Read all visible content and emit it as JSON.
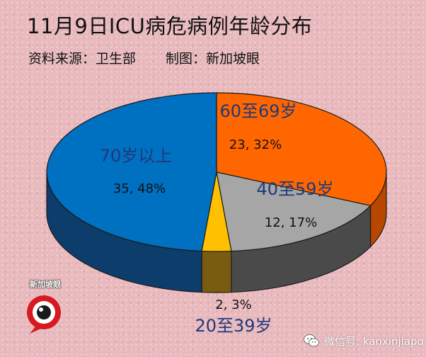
{
  "header": {
    "title": "11月9日ICU病危病例年龄分布",
    "source": "资料来源：卫生部",
    "credit": "制图：新加坡眼"
  },
  "chart_data": {
    "type": "pie",
    "title": "11月9日ICU病危病例年龄分布",
    "slices": [
      {
        "label": "60至69岁",
        "count": 23,
        "percent": "32%",
        "value_text": "23, 32%",
        "color": "#ff6600",
        "side_color": "#b84800"
      },
      {
        "label": "40至59岁",
        "count": 12,
        "percent": "17%",
        "value_text": "12, 17%",
        "color": "#a6a6a6",
        "side_color": "#4a4a4a"
      },
      {
        "label": "20至39岁",
        "count": 2,
        "percent": "3%",
        "value_text": "2, 3%",
        "color": "#ffc000",
        "side_color": "#7a5c10"
      },
      {
        "label": "70岁以上",
        "count": 35,
        "percent": "48%",
        "value_text": "35, 48%",
        "color": "#0070c0",
        "side_color": "#0d3d6b"
      }
    ]
  },
  "branding": {
    "logo_text": "新加坡眼",
    "wechat_text": "微信号: kanxinjiapo"
  }
}
